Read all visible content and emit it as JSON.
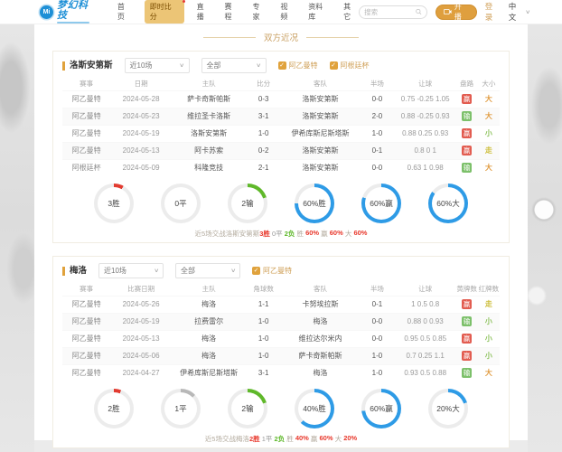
{
  "header": {
    "logo_text": "Mi",
    "brand": "梦幻科技",
    "nav": [
      {
        "label": "首页",
        "active": false
      },
      {
        "label": "即时比分",
        "active": true,
        "badge": true
      },
      {
        "label": "直播",
        "active": false
      },
      {
        "label": "赛程",
        "active": false
      },
      {
        "label": "专家",
        "active": false
      },
      {
        "label": "视频",
        "active": false
      },
      {
        "label": "资料库",
        "active": false
      },
      {
        "label": "其它",
        "active": false
      }
    ],
    "search_placeholder": "搜索",
    "broadcast_button": "开播",
    "login": "登录",
    "language": "中文"
  },
  "section_title": "双方近况",
  "colors": {
    "brand_blue": "#1d8fd6",
    "accent_orange": "#e0a23c",
    "win_red": "#e25c50",
    "lose_green": "#7cc06a",
    "arc_blue": "#2e9be6"
  },
  "panels": [
    {
      "team": "洛斯安第斯",
      "range_filter": "近10场",
      "type_filter": "全部",
      "checkboxes": [
        "阿乙曼特",
        "阿根廷杯"
      ],
      "columns": [
        "赛事",
        "日期",
        "主队",
        "比分",
        "客队",
        "半场",
        "让球",
        "盘路",
        "大小"
      ],
      "rows": [
        {
          "cells": [
            "阿乙曼特",
            "2024-05-28",
            "萨卡奇斯帕斯",
            "0-3",
            "洛斯安第斯",
            "0-0",
            "0.75 -0.25 1.05"
          ],
          "result": {
            "text": "赢",
            "type": "win"
          },
          "size": {
            "text": "大",
            "type": "big"
          }
        },
        {
          "cells": [
            "阿乙曼特",
            "2024-05-23",
            "维拉圣卡洛斯",
            "3-1",
            "洛斯安第斯",
            "2-0",
            "0.88 -0.25 0.93"
          ],
          "result": {
            "text": "输",
            "type": "lose"
          },
          "size": {
            "text": "大",
            "type": "big"
          }
        },
        {
          "cells": [
            "阿乙曼特",
            "2024-05-19",
            "洛斯安第斯",
            "1-0",
            "伊希库斯尼斯塔斯",
            "1-0",
            "0.88 0.25 0.93"
          ],
          "result": {
            "text": "赢",
            "type": "win"
          },
          "size": {
            "text": "小",
            "type": "small"
          }
        },
        {
          "cells": [
            "阿乙曼特",
            "2024-05-13",
            "阿卡苏索",
            "0-2",
            "洛斯安第斯",
            "0-1",
            "0.8 0 1"
          ],
          "result": {
            "text": "赢",
            "type": "win"
          },
          "size": {
            "text": "走",
            "type": "draw"
          }
        },
        {
          "cells": [
            "阿根廷杯",
            "2024-05-09",
            "科隆竞技",
            "2-1",
            "洛斯安第斯",
            "0-0",
            "0.63 1 0.98"
          ],
          "result": {
            "text": "输",
            "type": "lose"
          },
          "size": {
            "text": "大",
            "type": "big"
          }
        }
      ],
      "donuts": [
        {
          "label": "3胜",
          "color": "#e23b30",
          "pct": 8
        },
        {
          "label": "0平",
          "color": "#b8b8b8",
          "pct": 0
        },
        {
          "label": "2输",
          "color": "#5fb82a",
          "pct": 20
        },
        {
          "label": "60%胜",
          "color": "#2e9be6",
          "pct": 75
        },
        {
          "label": "60%赢",
          "color": "#2e9be6",
          "pct": 80
        },
        {
          "label": "60%大",
          "color": "#2e9be6",
          "pct": 85
        }
      ],
      "summary": [
        {
          "text": "近5场交战洛斯安第斯",
          "cls": "s-muted"
        },
        {
          "text": "3胜",
          "cls": "s-red"
        },
        {
          "text": " 0平 ",
          "cls": "s-gray"
        },
        {
          "text": "2负",
          "cls": "s-green"
        },
        {
          "text": " 胜 ",
          "cls": "s-muted"
        },
        {
          "text": "60%",
          "cls": "s-red"
        },
        {
          "text": " 赢 ",
          "cls": "s-muted"
        },
        {
          "text": "60%",
          "cls": "s-red"
        },
        {
          "text": " 大 ",
          "cls": "s-muted"
        },
        {
          "text": "60%",
          "cls": "s-red"
        }
      ]
    },
    {
      "team": "梅洛",
      "range_filter": "近10场",
      "type_filter": "全部",
      "checkboxes": [
        "阿乙曼特"
      ],
      "columns": [
        "赛事",
        "比赛日期",
        "主队",
        "角球数",
        "客队",
        "半场",
        "让球",
        "黄牌数",
        "红牌数"
      ],
      "rows": [
        {
          "cells": [
            "阿乙曼特",
            "2024-05-26",
            "梅洛",
            "1-1",
            "卡努埃拉斯",
            "0-1",
            "1 0.5 0.8"
          ],
          "result": {
            "text": "赢",
            "type": "win"
          },
          "size": {
            "text": "走",
            "type": "draw"
          }
        },
        {
          "cells": [
            "阿乙曼特",
            "2024-05-19",
            "拉费雷尔",
            "1-0",
            "梅洛",
            "0-0",
            "0.88 0 0.93"
          ],
          "result": {
            "text": "输",
            "type": "lose"
          },
          "size": {
            "text": "小",
            "type": "small"
          }
        },
        {
          "cells": [
            "阿乙曼特",
            "2024-05-13",
            "梅洛",
            "1-0",
            "维拉达尔米内",
            "0-0",
            "0.95 0.5 0.85"
          ],
          "result": {
            "text": "赢",
            "type": "win"
          },
          "size": {
            "text": "小",
            "type": "small"
          }
        },
        {
          "cells": [
            "阿乙曼特",
            "2024-05-06",
            "梅洛",
            "1-0",
            "萨卡奇斯帕斯",
            "1-0",
            "0.7 0.25 1.1"
          ],
          "result": {
            "text": "赢",
            "type": "win"
          },
          "size": {
            "text": "小",
            "type": "small"
          }
        },
        {
          "cells": [
            "阿乙曼特",
            "2024-04-27",
            "伊希库斯尼斯塔斯",
            "3-1",
            "梅洛",
            "1-0",
            "0.93 0.5 0.88"
          ],
          "result": {
            "text": "输",
            "type": "lose"
          },
          "size": {
            "text": "大",
            "type": "big"
          }
        }
      ],
      "donuts": [
        {
          "label": "2胜",
          "color": "#e23b30",
          "pct": 6
        },
        {
          "label": "1平",
          "color": "#b8b8b8",
          "pct": 13
        },
        {
          "label": "2输",
          "color": "#5fb82a",
          "pct": 20
        },
        {
          "label": "40%胜",
          "color": "#2e9be6",
          "pct": 62
        },
        {
          "label": "60%赢",
          "color": "#2e9be6",
          "pct": 73
        },
        {
          "label": "20%大",
          "color": "#2e9be6",
          "pct": 20
        }
      ],
      "summary": [
        {
          "text": "近5场交战梅洛",
          "cls": "s-muted"
        },
        {
          "text": "2胜",
          "cls": "s-red"
        },
        {
          "text": " 1平 ",
          "cls": "s-gray"
        },
        {
          "text": "2负",
          "cls": "s-green"
        },
        {
          "text": " 胜 ",
          "cls": "s-muted"
        },
        {
          "text": "40%",
          "cls": "s-red"
        },
        {
          "text": " 赢 ",
          "cls": "s-muted"
        },
        {
          "text": "60%",
          "cls": "s-red"
        },
        {
          "text": " 大 ",
          "cls": "s-muted"
        },
        {
          "text": "20%",
          "cls": "s-red"
        }
      ]
    }
  ]
}
